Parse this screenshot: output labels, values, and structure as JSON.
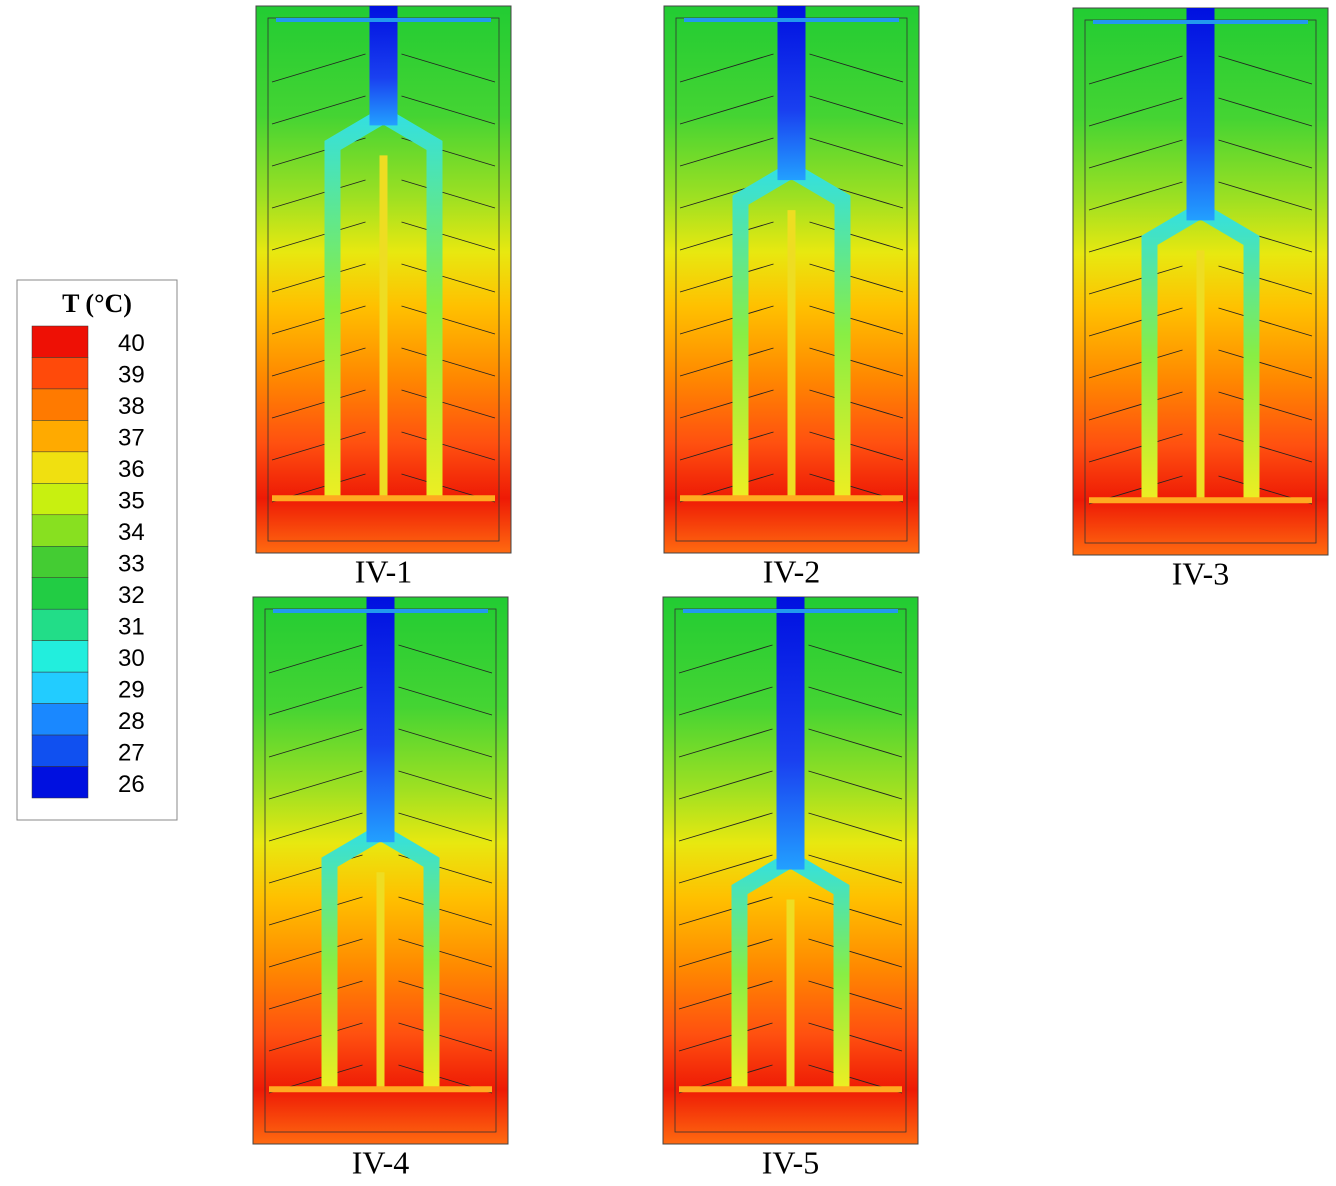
{
  "legend": {
    "title": "T (°C)",
    "labels": [
      40,
      39,
      38,
      37,
      36,
      35,
      34,
      33,
      32,
      31,
      30,
      29,
      28,
      27,
      26
    ]
  },
  "panels": [
    {
      "label": "IV-1"
    },
    {
      "label": "IV-2"
    },
    {
      "label": "IV-3"
    },
    {
      "label": "IV-4"
    },
    {
      "label": "IV-5"
    }
  ]
}
